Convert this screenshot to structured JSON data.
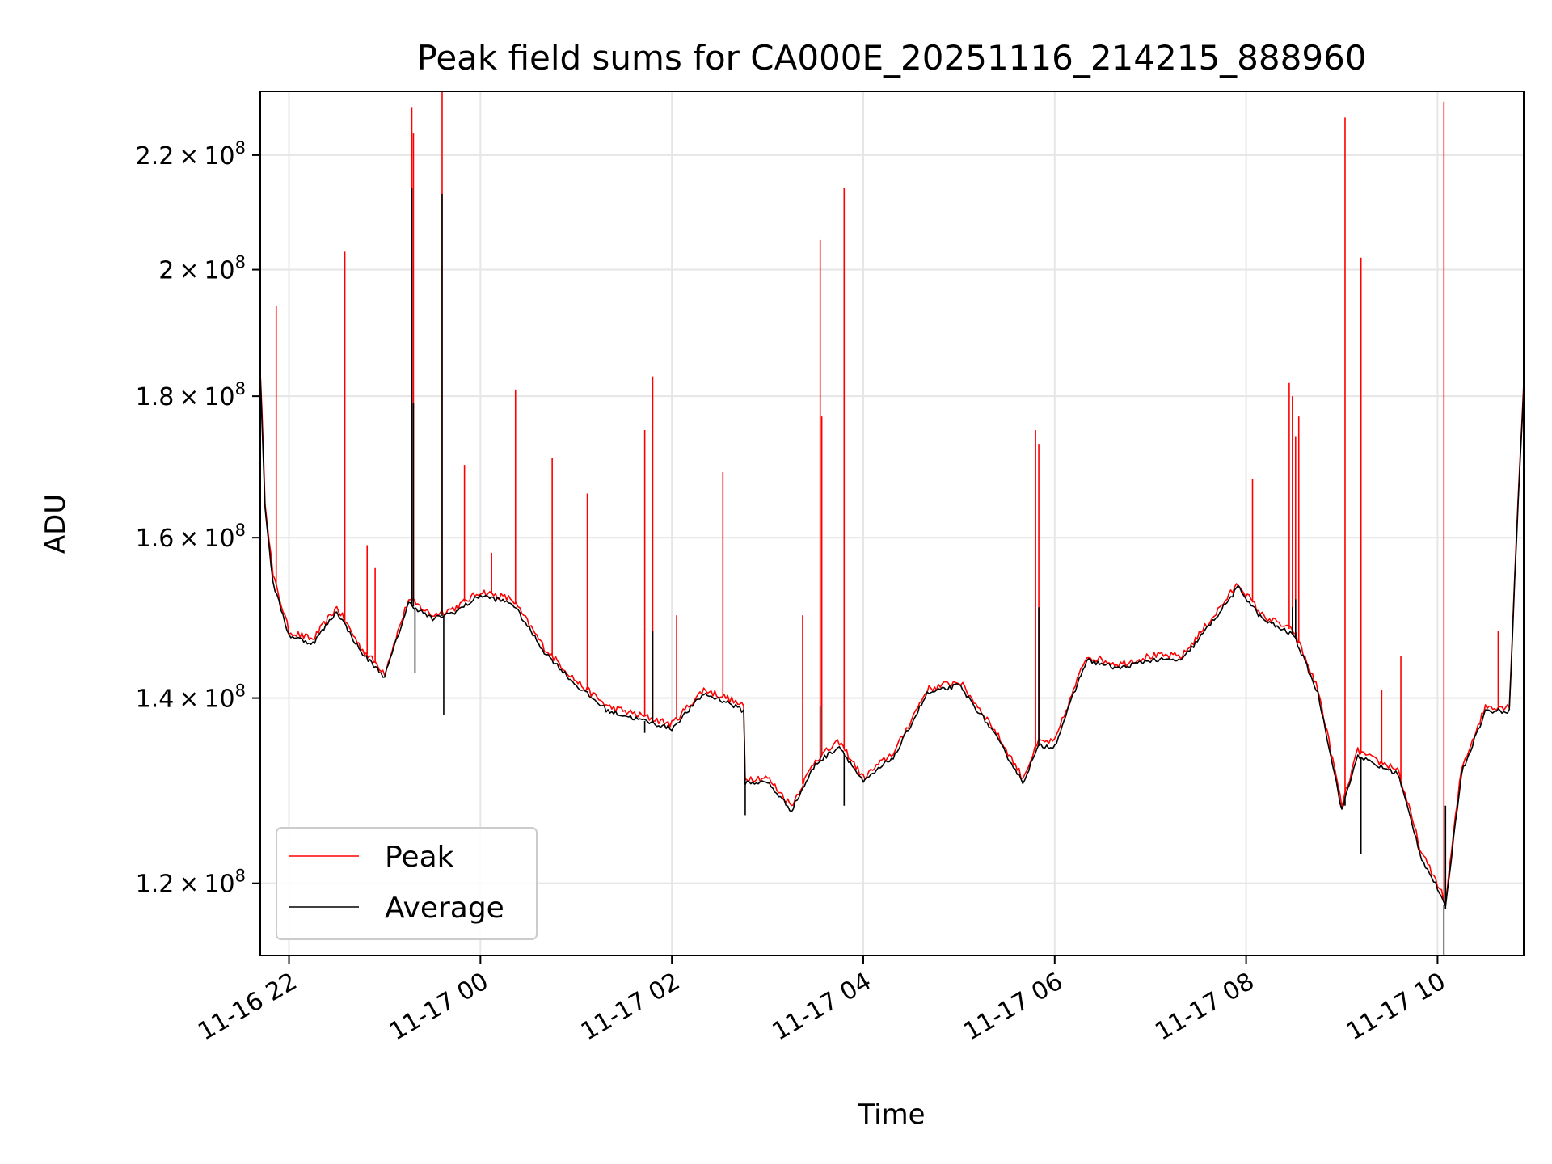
{
  "chart_data": {
    "type": "line",
    "title": "Peak field sums for CA000E_20251116_214215_888960",
    "xlabel": "Time",
    "ylabel": "ADU",
    "log_y": true,
    "grid": true,
    "legend": "lower-left",
    "xlim": [
      "2025-11-16 21:42",
      "2025-11-17 10:54"
    ],
    "ylim": [
      113000000,
      232000000
    ],
    "x_ticks": [
      {
        "t": "2025-11-16 22:00",
        "label": "11-16 22"
      },
      {
        "t": "2025-11-17 00:00",
        "label": "11-17 00"
      },
      {
        "t": "2025-11-17 02:00",
        "label": "11-17 02"
      },
      {
        "t": "2025-11-17 04:00",
        "label": "11-17 04"
      },
      {
        "t": "2025-11-17 06:00",
        "label": "11-17 06"
      },
      {
        "t": "2025-11-17 08:00",
        "label": "11-17 08"
      },
      {
        "t": "2025-11-17 10:00",
        "label": "11-17 10"
      }
    ],
    "y_ticks": [
      {
        "value": 120000000,
        "mantissa": "1.2",
        "exp": "8"
      },
      {
        "value": 140000000,
        "mantissa": "1.4",
        "exp": "8"
      },
      {
        "value": 160000000,
        "mantissa": "1.6",
        "exp": "8"
      },
      {
        "value": 180000000,
        "mantissa": "1.8",
        "exp": "8"
      },
      {
        "value": 200000000,
        "mantissa": "2",
        "exp": "8"
      },
      {
        "value": 220000000,
        "mantissa": "2.2",
        "exp": "8"
      }
    ],
    "colors": {
      "peak": "#ff0000",
      "average": "#000000"
    },
    "series": [
      {
        "name": "Peak",
        "color": "#ff0000",
        "x": [
          "2025-11-16 21:42",
          "2025-11-16 21:45",
          "2025-11-16 21:50",
          "2025-11-16 22:00",
          "2025-11-16 22:15",
          "2025-11-16 22:30",
          "2025-11-16 22:45",
          "2025-11-16 23:00",
          "2025-11-16 23:15",
          "2025-11-16 23:30",
          "2025-11-16 23:45",
          "2025-11-17 00:00",
          "2025-11-17 00:20",
          "2025-11-17 00:40",
          "2025-11-17 01:00",
          "2025-11-17 01:20",
          "2025-11-17 01:40",
          "2025-11-17 02:00",
          "2025-11-17 02:20",
          "2025-11-17 02:35",
          "2025-11-17 02:45",
          "2025-11-17 02:46",
          "2025-11-17 03:00",
          "2025-11-17 03:15",
          "2025-11-17 03:30",
          "2025-11-17 03:45",
          "2025-11-17 04:00",
          "2025-11-17 04:20",
          "2025-11-17 04:40",
          "2025-11-17 05:00",
          "2025-11-17 05:20",
          "2025-11-17 05:40",
          "2025-11-17 05:50",
          "2025-11-17 06:00",
          "2025-11-17 06:20",
          "2025-11-17 06:40",
          "2025-11-17 07:00",
          "2025-11-17 07:20",
          "2025-11-17 07:40",
          "2025-11-17 07:55",
          "2025-11-17 08:10",
          "2025-11-17 08:30",
          "2025-11-17 08:45",
          "2025-11-17 09:00",
          "2025-11-17 09:10",
          "2025-11-17 09:20",
          "2025-11-17 09:35",
          "2025-11-17 09:50",
          "2025-11-17 10:00",
          "2025-11-17 10:05",
          "2025-11-17 10:15",
          "2025-11-17 10:30",
          "2025-11-17 10:45",
          "2025-11-17 10:54"
        ],
        "y": [
          184000000,
          165000000,
          155000000,
          148000000,
          147000000,
          151000000,
          146000000,
          143000000,
          152000000,
          150000000,
          151000000,
          153000000,
          152000000,
          146000000,
          142000000,
          139000000,
          138000000,
          137000000,
          141000000,
          140000000,
          139000000,
          131000000,
          131000000,
          128000000,
          133000000,
          135000000,
          131000000,
          134000000,
          141000000,
          142000000,
          137000000,
          131000000,
          135000000,
          135000000,
          145000000,
          144000000,
          145000000,
          145000000,
          150000000,
          154000000,
          150000000,
          148000000,
          141000000,
          128000000,
          134000000,
          133000000,
          132000000,
          123000000,
          120000000,
          118000000,
          132000000,
          139000000,
          139000000,
          182000000
        ],
        "spikes": [
          {
            "t": "2025-11-16 21:52",
            "y": 194000000
          },
          {
            "t": "2025-11-16 22:35",
            "y": 203000000
          },
          {
            "t": "2025-11-16 22:49",
            "y": 159000000
          },
          {
            "t": "2025-11-16 22:54",
            "y": 156000000
          },
          {
            "t": "2025-11-16 23:17",
            "y": 229000000
          },
          {
            "t": "2025-11-16 23:18",
            "y": 224000000
          },
          {
            "t": "2025-11-16 23:36",
            "y": 233000000
          },
          {
            "t": "2025-11-16 23:50",
            "y": 170000000
          },
          {
            "t": "2025-11-17 00:07",
            "y": 158000000
          },
          {
            "t": "2025-11-17 00:22",
            "y": 181000000
          },
          {
            "t": "2025-11-17 00:45",
            "y": 171000000
          },
          {
            "t": "2025-11-17 01:07",
            "y": 166000000
          },
          {
            "t": "2025-11-17 01:43",
            "y": 175000000
          },
          {
            "t": "2025-11-17 01:48",
            "y": 183000000
          },
          {
            "t": "2025-11-17 02:03",
            "y": 150000000
          },
          {
            "t": "2025-11-17 02:32",
            "y": 169000000
          },
          {
            "t": "2025-11-17 03:22",
            "y": 150000000
          },
          {
            "t": "2025-11-17 03:33",
            "y": 205000000
          },
          {
            "t": "2025-11-17 03:34",
            "y": 177000000
          },
          {
            "t": "2025-11-17 03:48",
            "y": 214000000
          },
          {
            "t": "2025-11-17 05:48",
            "y": 175000000
          },
          {
            "t": "2025-11-17 05:50",
            "y": 173000000
          },
          {
            "t": "2025-11-17 08:04",
            "y": 168000000
          },
          {
            "t": "2025-11-17 08:27",
            "y": 182000000
          },
          {
            "t": "2025-11-17 08:29",
            "y": 180000000
          },
          {
            "t": "2025-11-17 08:31",
            "y": 174000000
          },
          {
            "t": "2025-11-17 08:33",
            "y": 177000000
          },
          {
            "t": "2025-11-17 09:02",
            "y": 227000000
          },
          {
            "t": "2025-11-17 09:12",
            "y": 202000000
          },
          {
            "t": "2025-11-17 09:25",
            "y": 141000000
          },
          {
            "t": "2025-11-17 09:37",
            "y": 145000000
          },
          {
            "t": "2025-11-17 10:04",
            "y": 230000000
          },
          {
            "t": "2025-11-17 10:38",
            "y": 148000000
          }
        ]
      },
      {
        "name": "Average",
        "color": "#000000",
        "x": [
          "2025-11-16 21:42",
          "2025-11-16 21:45",
          "2025-11-16 21:50",
          "2025-11-16 22:00",
          "2025-11-16 22:15",
          "2025-11-16 22:30",
          "2025-11-16 22:45",
          "2025-11-16 23:00",
          "2025-11-16 23:15",
          "2025-11-16 23:30",
          "2025-11-16 23:45",
          "2025-11-17 00:00",
          "2025-11-17 00:20",
          "2025-11-17 00:40",
          "2025-11-17 01:00",
          "2025-11-17 01:20",
          "2025-11-17 01:40",
          "2025-11-17 02:00",
          "2025-11-17 02:20",
          "2025-11-17 02:35",
          "2025-11-17 02:45",
          "2025-11-17 02:46",
          "2025-11-17 03:00",
          "2025-11-17 03:15",
          "2025-11-17 03:30",
          "2025-11-17 03:45",
          "2025-11-17 04:00",
          "2025-11-17 04:20",
          "2025-11-17 04:40",
          "2025-11-17 05:00",
          "2025-11-17 05:20",
          "2025-11-17 05:40",
          "2025-11-17 05:50",
          "2025-11-17 06:00",
          "2025-11-17 06:20",
          "2025-11-17 06:40",
          "2025-11-17 07:00",
          "2025-11-17 07:20",
          "2025-11-17 07:40",
          "2025-11-17 07:55",
          "2025-11-17 08:10",
          "2025-11-17 08:30",
          "2025-11-17 08:45",
          "2025-11-17 09:00",
          "2025-11-17 09:10",
          "2025-11-17 09:20",
          "2025-11-17 09:35",
          "2025-11-17 09:50",
          "2025-11-17 10:00",
          "2025-11-17 10:05",
          "2025-11-17 10:15",
          "2025-11-17 10:30",
          "2025-11-17 10:45",
          "2025-11-17 10:54"
        ],
        "y": [
          183000000,
          164000000,
          154000000,
          147500000,
          146500000,
          150500000,
          145500000,
          142500000,
          151500000,
          149500000,
          150500000,
          152500000,
          151500000,
          145500000,
          141500000,
          138500000,
          137500000,
          136500000,
          140500000,
          139500000,
          138500000,
          130500000,
          130500000,
          127500000,
          132500000,
          134500000,
          130500000,
          133500000,
          140500000,
          141500000,
          136500000,
          130500000,
          134500000,
          134500000,
          144500000,
          143500000,
          144500000,
          144500000,
          149500000,
          153500000,
          149500000,
          147500000,
          140500000,
          127500000,
          133500000,
          132500000,
          131500000,
          122500000,
          119500000,
          117500000,
          131500000,
          138500000,
          138500000,
          181000000
        ],
        "spikes": [
          {
            "t": "2025-11-16 23:17",
            "y": 214000000
          },
          {
            "t": "2025-11-16 23:18",
            "y": 179000000
          },
          {
            "t": "2025-11-16 23:19",
            "y": 143000000
          },
          {
            "t": "2025-11-16 23:36",
            "y": 213000000
          },
          {
            "t": "2025-11-16 23:37",
            "y": 138000000
          },
          {
            "t": "2025-11-17 01:43",
            "y": 136000000
          },
          {
            "t": "2025-11-17 01:48",
            "y": 148000000
          },
          {
            "t": "2025-11-17 02:46",
            "y": 127000000
          },
          {
            "t": "2025-11-17 03:33",
            "y": 139000000
          },
          {
            "t": "2025-11-17 03:48",
            "y": 128000000
          },
          {
            "t": "2025-11-17 05:50",
            "y": 151000000
          },
          {
            "t": "2025-11-17 08:29",
            "y": 151000000
          },
          {
            "t": "2025-11-17 08:31",
            "y": 152000000
          },
          {
            "t": "2025-11-17 09:02",
            "y": 128000000
          },
          {
            "t": "2025-11-17 09:12",
            "y": 123000000
          },
          {
            "t": "2025-11-17 10:04",
            "y": 113000000
          },
          {
            "t": "2025-11-17 10:05",
            "y": 128000000
          }
        ]
      }
    ]
  }
}
